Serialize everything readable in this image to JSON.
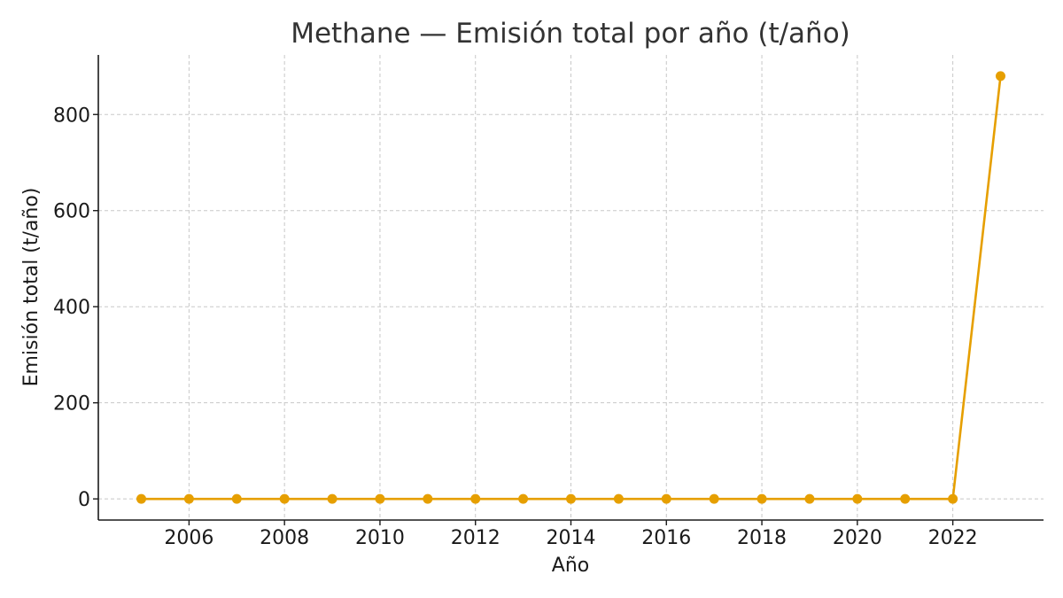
{
  "chart_data": {
    "type": "line",
    "title": "Methane — Emisión total por año (t/año)",
    "xlabel": "Año",
    "ylabel": "Emisión total (t/año)",
    "x": [
      2005,
      2006,
      2007,
      2008,
      2009,
      2010,
      2011,
      2012,
      2013,
      2014,
      2015,
      2016,
      2017,
      2018,
      2019,
      2020,
      2021,
      2022,
      2023
    ],
    "series": [
      {
        "values": [
          0,
          0,
          0,
          0,
          0,
          0,
          0,
          0,
          0,
          0,
          0,
          0,
          0,
          0,
          0,
          0,
          0,
          0,
          880
        ],
        "color": "#E69F00"
      }
    ],
    "xticks": [
      2006,
      2008,
      2010,
      2012,
      2014,
      2016,
      2018,
      2020,
      2022
    ],
    "yticks": [
      0,
      200,
      400,
      600,
      800
    ],
    "xlim": [
      2004.1,
      2023.9
    ],
    "ylim": [
      -44,
      924
    ],
    "grid": true
  }
}
